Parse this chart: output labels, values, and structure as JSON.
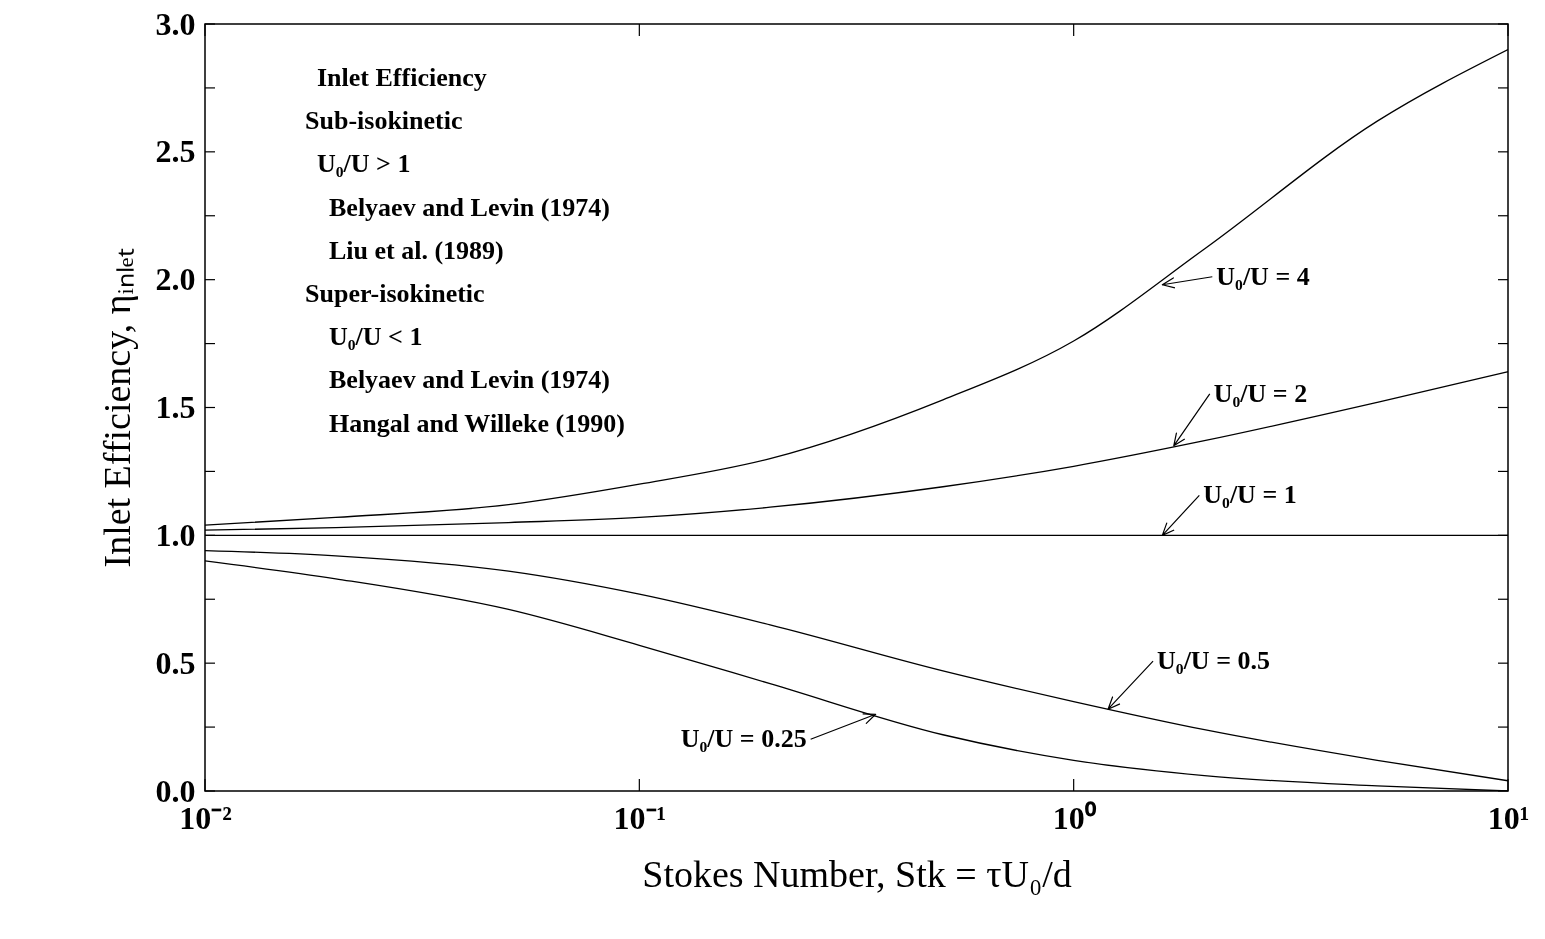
{
  "chart_data": {
    "type": "line",
    "xlabel": "Stokes Number, Stk = τU₀/d",
    "ylabel": "Inlet Efficiency, ηᵢₙₗₑₜ",
    "log": "x",
    "x": [
      0.01,
      0.02,
      0.05,
      0.1,
      0.2,
      0.5,
      1,
      2,
      5,
      10
    ],
    "xlim": [
      0.01,
      10
    ],
    "ylim": [
      0,
      3
    ],
    "xticks": [
      {
        "value": 0.01,
        "label": "10⁻²"
      },
      {
        "value": 0.1,
        "label": "10⁻¹"
      },
      {
        "value": 1,
        "label": "10⁰"
      },
      {
        "value": 10,
        "label": "10¹"
      }
    ],
    "yticks": [
      {
        "value": 0,
        "label": "0.0"
      },
      {
        "value": 0.25,
        "label": null
      },
      {
        "value": 0.5,
        "label": "0.5"
      },
      {
        "value": 0.75,
        "label": null
      },
      {
        "value": 1,
        "label": "1.0"
      },
      {
        "value": 1.25,
        "label": null
      },
      {
        "value": 1.5,
        "label": "1.5"
      },
      {
        "value": 1.75,
        "label": null
      },
      {
        "value": 2,
        "label": "2.0"
      },
      {
        "value": 2.25,
        "label": null
      },
      {
        "value": 2.5,
        "label": "2.5"
      },
      {
        "value": 2.75,
        "label": null
      },
      {
        "value": 3,
        "label": "3.0"
      }
    ],
    "series": [
      {
        "color": "#000000",
        "values": [
          1.04,
          1.07,
          1.12,
          1.2,
          1.3,
          1.53,
          1.76,
          2.12,
          2.62,
          2.9
        ]
      },
      {
        "color": "#000000",
        "values": [
          1.02,
          1.03,
          1.05,
          1.07,
          1.11,
          1.19,
          1.27,
          1.37,
          1.52,
          1.64
        ]
      },
      {
        "color": "#000000",
        "values": [
          1,
          1,
          1,
          1,
          1,
          1,
          1,
          1,
          1,
          1
        ]
      },
      {
        "color": "#000000",
        "values": [
          0.94,
          0.92,
          0.86,
          0.77,
          0.65,
          0.47,
          0.35,
          0.24,
          0.12,
          0.04
        ]
      },
      {
        "color": "#000000",
        "values": [
          0.9,
          0.83,
          0.71,
          0.57,
          0.42,
          0.22,
          0.12,
          0.06,
          0.02,
          0
        ]
      }
    ],
    "annotations": [
      "Inlet Efficiency",
      "Sub-isokinetic",
      "U₀/U > 1",
      "Belyaev and Levin (1974)",
      "Liu et al. (1989)",
      "Super-isokinetic",
      "U₀/U < 1",
      "Belyaev and Levin (1974)",
      "Hangal and Willeke (1990)",
      {
        "text": "U₀/U = 4",
        "x": 1.6,
        "y": 1.98
      },
      {
        "text": "U₀/U = 2",
        "x": 1.7,
        "y": 1.35
      },
      {
        "text": "U₀/U = 1",
        "x": 1.6,
        "y": 1.0
      },
      {
        "text": "U₀/U = 0.5",
        "x": 1.2,
        "y": 0.32
      },
      {
        "text": "U₀/U = 0.25",
        "x": 0.35,
        "y": 0.3
      }
    ],
    "grid": false,
    "legend": false,
    "marker": "none",
    "line_style": "solid"
  }
}
